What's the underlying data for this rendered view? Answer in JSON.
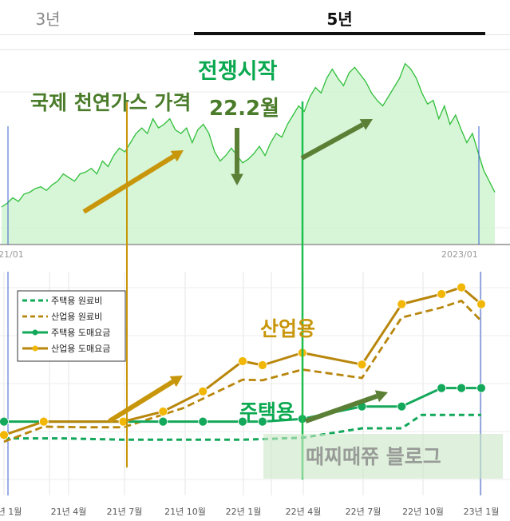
{
  "tabs": [
    {
      "label": "3년"
    },
    {
      "label": "5년"
    }
  ],
  "colors": {
    "gas_line": "#2fbf3a",
    "gas_fill": "#c9f2c9",
    "blue_line": "#3a5fcf",
    "gold": "#b8860b",
    "gold_dot": "#f2b705",
    "green": "#13a85a",
    "annot_green": "#0aa84f",
    "annot_olive": "#4a7c2a",
    "annot_gold": "#c8960a",
    "arrow_olive": "#5a7f35",
    "war_line": "#1fbf4f"
  },
  "annotations": {
    "war_start": "전쟁시작",
    "gas_price": "국제 천연가스 가격",
    "feb22": "22.2월",
    "industrial": "산업용",
    "residential": "주택용",
    "watermark": "때찌때쮸 블로그"
  },
  "chart_data": [
    {
      "type": "area",
      "x_tick_labels": [
        "21/01",
        "2023/01"
      ],
      "series": [
        {
          "values": [
            2,
            2.2,
            2.5,
            2.3,
            2.7,
            2.8,
            3.0,
            3.1,
            2.9,
            3.2,
            3.4,
            3.8,
            3.6,
            3.4,
            3.8,
            3.9,
            4.1,
            3.8,
            4.5,
            4.2,
            4.8,
            5.2,
            5.0,
            5.5,
            6.0,
            6.3,
            6.0,
            6.8,
            6.3,
            6.5,
            6.8,
            6.2,
            6.0,
            6.3,
            5.5,
            6.2,
            6.5,
            6.0,
            5.0,
            4.5,
            4.8,
            5.2,
            4.8,
            4.4,
            4.6,
            4.9,
            5.3,
            4.8,
            5.5,
            6.0,
            5.8,
            6.5,
            7.0,
            7.5,
            7.2,
            8.0,
            8.5,
            8.2,
            9.0,
            9.5,
            9.0,
            8.6,
            9.3,
            9.6,
            9.2,
            8.8,
            8.2,
            7.8,
            7.5,
            8.0,
            8.5,
            9.0,
            9.8,
            9.5,
            9.0,
            8.2,
            7.6,
            7.8,
            6.8,
            7.5,
            6.5,
            7.0,
            6.2,
            5.5,
            6.0,
            5.0,
            4.0,
            3.4,
            2.8
          ]
        }
      ]
    },
    {
      "type": "line",
      "categories": [
        "21년 1월",
        "21년 4월",
        "21년 7월",
        "21년 10월",
        "22년 1월",
        "22년 4월",
        "22년 7월",
        "22년 10월",
        "23년 1월"
      ],
      "series": [
        {
          "name": "주택용 원료비",
          "dashed": true,
          "points": [
            [
              0,
              17
            ],
            [
              3,
              17
            ],
            [
              6,
              16.6
            ],
            [
              9,
              16.6
            ],
            [
              12,
              16.6
            ],
            [
              15,
              17.2
            ],
            [
              18,
              20
            ],
            [
              20,
              20
            ],
            [
              21,
              24
            ],
            [
              22,
              24
            ],
            [
              24,
              24
            ]
          ]
        },
        {
          "name": "산업용 원료비",
          "dashed": true,
          "points": [
            [
              0,
              16
            ],
            [
              2,
              20.5
            ],
            [
              4,
              20.3
            ],
            [
              6,
              20.3
            ],
            [
              9,
              26
            ],
            [
              12,
              34.5
            ],
            [
              13,
              34.3
            ],
            [
              15,
              37.5
            ],
            [
              18,
              35
            ],
            [
              20,
              53
            ],
            [
              22,
              56
            ],
            [
              23,
              58
            ],
            [
              24,
              52
            ]
          ]
        },
        {
          "name": "주택용 도매요금",
          "dashed": false,
          "points": [
            [
              0,
              22
            ],
            [
              2,
              22
            ],
            [
              6,
              22
            ],
            [
              8,
              22
            ],
            [
              10,
              22
            ],
            [
              12,
              22
            ],
            [
              13,
              22
            ],
            [
              15,
              22.8
            ],
            [
              18,
              26.5
            ],
            [
              20,
              26.5
            ],
            [
              22,
              32
            ],
            [
              23,
              32
            ],
            [
              24,
              32
            ]
          ]
        },
        {
          "name": "산업용 도매요금",
          "dashed": false,
          "points": [
            [
              0,
              18
            ],
            [
              2,
              22
            ],
            [
              6,
              22
            ],
            [
              8,
              25
            ],
            [
              10,
              31
            ],
            [
              12,
              40
            ],
            [
              13,
              38.8
            ],
            [
              15,
              42.5
            ],
            [
              18,
              39
            ],
            [
              20,
              57
            ],
            [
              22,
              60
            ],
            [
              23,
              62
            ],
            [
              24,
              57
            ]
          ]
        }
      ]
    }
  ]
}
